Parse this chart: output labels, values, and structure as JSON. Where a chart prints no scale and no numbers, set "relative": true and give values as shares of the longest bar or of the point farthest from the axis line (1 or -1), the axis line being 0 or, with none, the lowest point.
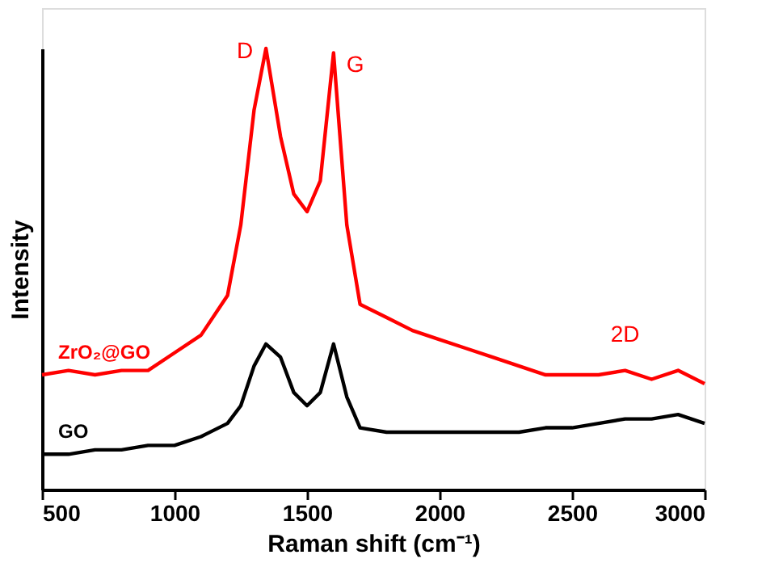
{
  "chart_data": {
    "type": "line",
    "relative": true,
    "xlabel": "Raman shift (cm⁻¹)",
    "ylabel": "Intensity",
    "xlim": [
      500,
      3000
    ],
    "xticks": [
      500,
      1000,
      1500,
      2000,
      2500,
      3000
    ],
    "grid": false,
    "legend": false,
    "marker": "none",
    "line_style": "solid",
    "x": [
      500,
      600,
      700,
      800,
      900,
      1000,
      1100,
      1200,
      1250,
      1300,
      1345,
      1400,
      1450,
      1500,
      1550,
      1600,
      1650,
      1700,
      1800,
      1900,
      2000,
      2100,
      2200,
      2300,
      2400,
      2500,
      2600,
      2700,
      2800,
      2900,
      3000
    ],
    "series": [
      {
        "name": "ZrO₂@GO",
        "color": "#ff0000",
        "values": [
          0.26,
          0.27,
          0.26,
          0.27,
          0.27,
          0.31,
          0.35,
          0.44,
          0.6,
          0.86,
          1.0,
          0.8,
          0.67,
          0.63,
          0.7,
          0.99,
          0.6,
          0.42,
          0.39,
          0.36,
          0.34,
          0.32,
          0.3,
          0.28,
          0.26,
          0.26,
          0.26,
          0.27,
          0.25,
          0.27,
          0.24
        ]
      },
      {
        "name": "GO",
        "color": "#000000",
        "values": [
          0.08,
          0.08,
          0.09,
          0.09,
          0.1,
          0.1,
          0.12,
          0.15,
          0.19,
          0.28,
          0.33,
          0.3,
          0.22,
          0.19,
          0.22,
          0.33,
          0.21,
          0.14,
          0.13,
          0.13,
          0.13,
          0.13,
          0.13,
          0.13,
          0.14,
          0.14,
          0.15,
          0.16,
          0.16,
          0.17,
          0.15
        ]
      }
    ],
    "annotations": [
      {
        "text": "D",
        "x": 1345,
        "y": 1.0
      },
      {
        "text": "G",
        "x": 1600,
        "y": 0.99
      },
      {
        "text": "2D",
        "x": 2700,
        "y": 0.27
      }
    ]
  }
}
